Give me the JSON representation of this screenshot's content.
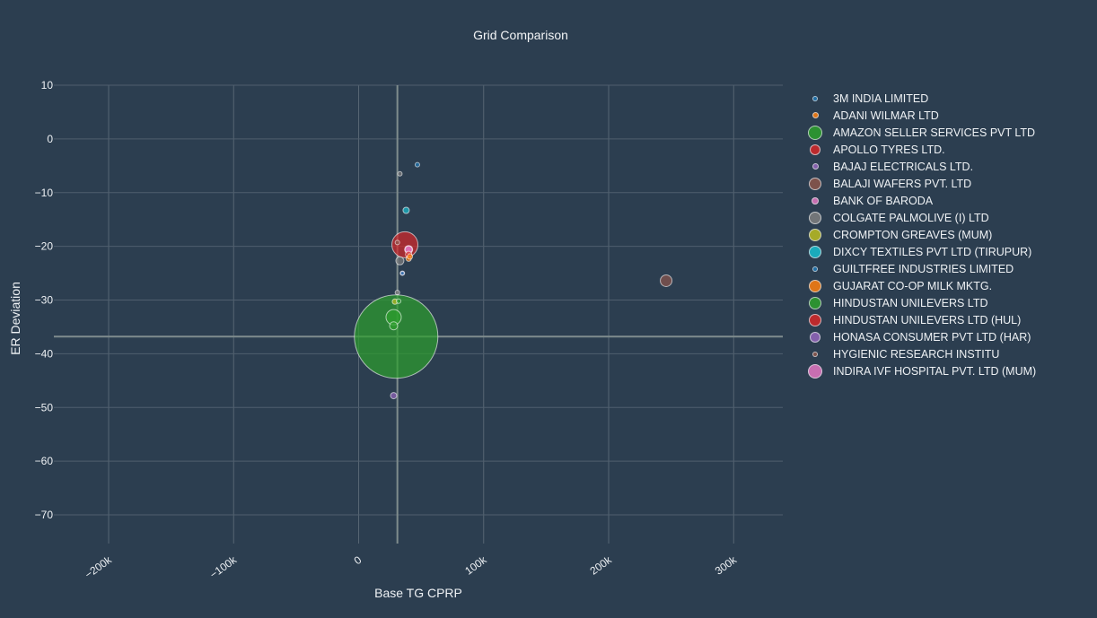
{
  "chart_data": {
    "type": "scatter",
    "title": "Grid Comparison",
    "xlabel": "Base TG CPRP",
    "ylabel": "ER Deviation",
    "xlim": [
      -245000,
      340000
    ],
    "ylim": [
      -77,
      10
    ],
    "x_ticks": [
      -200000,
      -100000,
      0,
      100000,
      200000,
      300000
    ],
    "x_tick_labels": [
      "−200k",
      "−100k",
      "0",
      "100k",
      "200k",
      "300k"
    ],
    "y_ticks": [
      10,
      0,
      -10,
      -20,
      -30,
      -40,
      -50,
      -60,
      -70
    ],
    "y_tick_labels": [
      "10",
      "0",
      "−10",
      "−20",
      "−30",
      "−40",
      "−50",
      "−60",
      "−70"
    ],
    "reference_lines": {
      "x": 31000,
      "y": -36.8
    },
    "grid": true,
    "legend_position": "right",
    "series": [
      {
        "name": "3M INDIA LIMITED",
        "color": "#1f77b4",
        "points": [
          {
            "x": 47000,
            "y": -4.8,
            "size": 4
          }
        ]
      },
      {
        "name": "ADANI WILMAR LTD",
        "color": "#ff7f0e",
        "points": [
          {
            "x": 40000,
            "y": -22.3,
            "size": 5
          }
        ]
      },
      {
        "name": "AMAZON SELLER SERVICES PVT LTD",
        "color": "#2ca02c",
        "points": [
          {
            "x": 32000,
            "y": -30.2,
            "size": 4
          },
          {
            "x": 28000,
            "y": -34.8,
            "size": 8
          }
        ]
      },
      {
        "name": "APOLLO TYRES LTD.",
        "color": "#d62728",
        "points": [
          {
            "x": 40000,
            "y": -21.5,
            "size": 6
          }
        ]
      },
      {
        "name": "BAJAJ ELECTRICALS LTD.",
        "color": "#9467bd",
        "points": [
          {
            "x": 35000,
            "y": -25.0,
            "size": 4
          }
        ]
      },
      {
        "name": "BALAJI WAFERS PVT. LTD",
        "color": "#8c564b",
        "points": [
          {
            "x": 246000,
            "y": -26.4,
            "size": 12
          }
        ]
      },
      {
        "name": "BANK OF BARODA",
        "color": "#e377c2",
        "points": [
          {
            "x": 40000,
            "y": -20.6,
            "size": 8
          }
        ]
      },
      {
        "name": "COLGATE PALMOLIVE (I) LTD",
        "color": "#7f7f7f",
        "points": [
          {
            "x": 33000,
            "y": -6.5,
            "size": 4
          },
          {
            "x": 33000,
            "y": -22.7,
            "size": 8
          },
          {
            "x": 31000,
            "y": -28.6,
            "size": 4
          }
        ]
      },
      {
        "name": "CROMPTON  GREAVES  (MUM)",
        "color": "#bcbd22",
        "points": [
          {
            "x": 29000,
            "y": -30.3,
            "size": 5
          }
        ]
      },
      {
        "name": "DIXCY TEXTILES PVT LTD (TIRUPUR)",
        "color": "#17becf",
        "points": [
          {
            "x": 38000,
            "y": -13.3,
            "size": 6
          }
        ]
      },
      {
        "name": "GUILTFREE INDUSTRIES LIMITED",
        "color": "#1f77b4",
        "points": [
          {
            "x": 35000,
            "y": -25.0,
            "size": 3
          }
        ]
      },
      {
        "name": "GUJARAT CO-OP MILK MKTG.",
        "color": "#ff7f0e",
        "points": [
          {
            "x": 41000,
            "y": -21.9,
            "size": 5
          }
        ]
      },
      {
        "name": "HINDUSTAN UNILEVERS LTD",
        "color": "#2ca02c",
        "points": [
          {
            "x": 30000,
            "y": -36.8,
            "size": 92
          },
          {
            "x": 28000,
            "y": -33.2,
            "size": 16
          }
        ]
      },
      {
        "name": "HINDUSTAN UNILEVERS LTD (HUL)",
        "color": "#d62728",
        "points": [
          {
            "x": 37000,
            "y": -19.7,
            "size": 28
          }
        ]
      },
      {
        "name": "HONASA CONSUMER PVT LTD (HAR)",
        "color": "#9467bd",
        "points": [
          {
            "x": 28000,
            "y": -47.8,
            "size": 6
          }
        ]
      },
      {
        "name": "HYGIENIC RESEARCH INSTITU",
        "color": "#8c564b",
        "points": [
          {
            "x": 31000,
            "y": -19.3,
            "size": 4
          }
        ]
      },
      {
        "name": "INDIRA IVF HOSPITAL PVT. LTD (MUM)",
        "color": "#e377c2",
        "points": [
          {
            "x": 40000,
            "y": -20.6,
            "size": 7
          }
        ]
      }
    ],
    "legend_sizes": [
      6,
      7,
      16,
      12,
      7,
      14,
      8,
      14,
      14,
      14,
      6,
      14,
      14,
      14,
      12,
      6,
      16
    ]
  }
}
